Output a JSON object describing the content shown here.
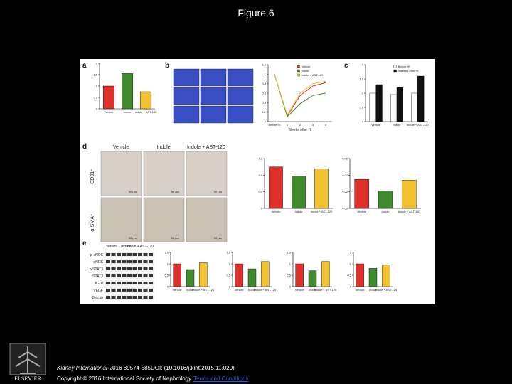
{
  "header": {
    "title": "Figure 6"
  },
  "figure": {
    "panel_labels": [
      "a",
      "b",
      "c",
      "d",
      "e"
    ],
    "charts": {
      "a": {
        "type": "bar",
        "categories": [
          "Vehicle",
          "Indole",
          "Indole + AST-120"
        ],
        "values": [
          1.0,
          1.55,
          0.75
        ],
        "colors": [
          "#e0302c",
          "#3f8a2c",
          "#f2c232"
        ],
        "ylim": [
          0,
          2
        ],
        "yticks": [
          0,
          0.5,
          1,
          1.5,
          2
        ]
      },
      "b": {
        "type": "line",
        "categories": [
          "Before HI",
          "1",
          "2",
          "3",
          "4"
        ],
        "series": [
          {
            "name": "Vehicle",
            "color": "#e0302c",
            "values": [
              1.0,
              0.12,
              0.55,
              0.75,
              0.82
            ]
          },
          {
            "name": "Indole",
            "color": "#3f8a2c",
            "values": [
              1.0,
              0.1,
              0.38,
              0.55,
              0.6
            ]
          },
          {
            "name": "Indole + AST-120",
            "color": "#f2c232",
            "values": [
              1.0,
              0.14,
              0.6,
              0.8,
              0.85
            ]
          }
        ],
        "ylim": [
          0,
          1.2
        ],
        "yticks": [
          0,
          0.2,
          0.4,
          0.6,
          0.8,
          1,
          1.2
        ],
        "x_label": "Weeks after HI"
      },
      "c": {
        "type": "bar",
        "categories": [
          "Vehicle",
          "Indole",
          "Indole + AST-120"
        ],
        "series": [
          {
            "name": "Before HI",
            "color": "#ffffff",
            "values": [
              1.0,
              0.95,
              1.0
            ]
          },
          {
            "name": "4 weeks after HI",
            "color": "#111111",
            "values": [
              1.3,
              1.2,
              1.6
            ]
          }
        ],
        "ylim": [
          0,
          2
        ],
        "yticks": [
          0,
          0.5,
          1,
          1.5,
          2
        ]
      },
      "d1": {
        "type": "bar",
        "categories": [
          "Vehicle",
          "Indole",
          "Indole + AST-120"
        ],
        "values": [
          1.0,
          0.78,
          0.95
        ],
        "colors": [
          "#e0302c",
          "#3f8a2c",
          "#f2c232"
        ],
        "ylim": [
          0,
          1.2
        ],
        "yticks": [
          0,
          0.4,
          0.8,
          1.2
        ]
      },
      "d2": {
        "type": "bar",
        "categories": [
          "Vehicle",
          "Indole",
          "Indole + AST-120"
        ],
        "values": [
          0.035,
          0.021,
          0.034
        ],
        "colors": [
          "#e0302c",
          "#3f8a2c",
          "#f2c232"
        ],
        "ylim": [
          0,
          0.06
        ],
        "yticks": [
          {
            "value": 0,
            "label": "0.00"
          },
          0.02,
          0.04,
          0.06
        ]
      },
      "e1": {
        "type": "bar",
        "categories": [
          "Vehicle",
          "Indole",
          "Indole + AST-120"
        ],
        "values": [
          1.0,
          0.75,
          1.05
        ],
        "colors": [
          "#e0302c",
          "#3f8a2c",
          "#f2c232"
        ],
        "ylim": [
          0,
          1.5
        ],
        "yticks": [
          0,
          0.5,
          1,
          1.5
        ]
      },
      "e2": {
        "type": "bar",
        "categories": [
          "Vehicle",
          "Indole",
          "Indole + AST-120"
        ],
        "values": [
          1.0,
          0.78,
          1.1
        ],
        "colors": [
          "#e0302c",
          "#3f8a2c",
          "#f2c232"
        ],
        "ylim": [
          0,
          1.5
        ],
        "yticks": [
          0,
          0.5,
          1,
          1.5
        ]
      },
      "e3": {
        "type": "bar",
        "categories": [
          "Vehicle",
          "Indole",
          "Indole + AST-120"
        ],
        "values": [
          1.0,
          0.7,
          1.1
        ],
        "colors": [
          "#e0302c",
          "#3f8a2c",
          "#f2c232"
        ],
        "ylim": [
          0,
          1.5
        ],
        "yticks": [
          0,
          0.5,
          1,
          1.5
        ]
      },
      "e4": {
        "type": "bar",
        "categories": [
          "Vehicle",
          "Indole",
          "Indole + AST-120"
        ],
        "values": [
          1.0,
          0.8,
          0.95
        ],
        "colors": [
          "#e0302c",
          "#3f8a2c",
          "#f2c232"
        ],
        "ylim": [
          0,
          1.5
        ],
        "yticks": [
          0,
          0.5,
          1,
          1.5
        ]
      }
    },
    "micrograph_columns": [
      "Vehicle",
      "Indole",
      "Indole + AST-120"
    ],
    "micrograph_rows": [
      "CD31⁺",
      "α-SMA⁺"
    ],
    "scale_bar": "50 μm",
    "blot_columns": [
      "Vehicle",
      "Indole",
      "Indole + AST-120"
    ],
    "blot_rows": [
      "p-eNOS",
      "eNOS",
      "p-STAT3",
      "STAT3",
      "IL-10",
      "VEGF",
      "β-actin"
    ]
  },
  "footer": {
    "publisher": "ELSEVIER",
    "journal": "Kidney International",
    "citation": "2016 89574-585DOI: (10.1016/j.kint.2015.11.020)",
    "copyright": "Copyright © 2016 International Society of Nephrology",
    "link": "Terms and Conditions"
  }
}
